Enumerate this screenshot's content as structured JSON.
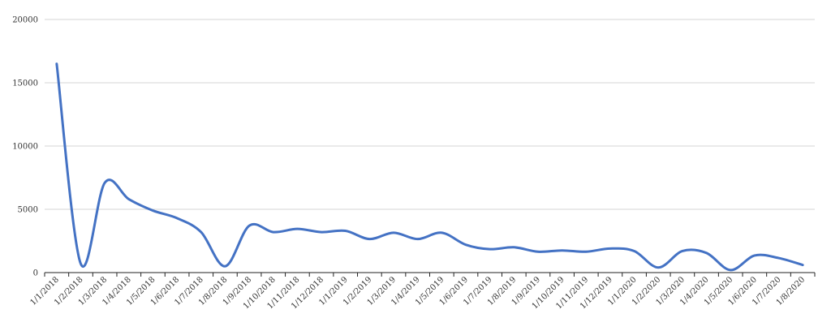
{
  "chart_data": {
    "type": "line",
    "title": "",
    "xlabel": "",
    "ylabel": "",
    "ylim": [
      0,
      20000
    ],
    "yticks": [
      0,
      5000,
      10000,
      15000,
      20000
    ],
    "grid": true,
    "legend": "none",
    "line_color": "#4472c4",
    "x": [
      "1/1/2018",
      "1/2/2018",
      "1/3/2018",
      "1/4/2018",
      "1/5/2018",
      "1/6/2018",
      "1/7/2018",
      "1/8/2018",
      "1/9/2018",
      "1/10/2018",
      "1/11/2018",
      "1/12/2018",
      "1/1/2019",
      "1/2/2019",
      "1/3/2019",
      "1/4/2019",
      "1/5/2019",
      "1/6/2019",
      "1/7/2019",
      "1/8/2019",
      "1/9/2019",
      "1/10/2019",
      "1/11/2019",
      "1/12/2019",
      "1/1/2020",
      "1/2/2020",
      "1/3/2020",
      "1/4/2020",
      "1/5/2020",
      "1/6/2020",
      "1/7/2020",
      "1/8/2020"
    ],
    "series": [
      {
        "values": [
          16500,
          700,
          7100,
          5800,
          4900,
          4300,
          3200,
          500,
          3700,
          3200,
          3450,
          3200,
          3300,
          2650,
          3150,
          2650,
          3150,
          2200,
          1850,
          2000,
          1650,
          1750,
          1650,
          1900,
          1700,
          400,
          1700,
          1550,
          200,
          1350,
          1150,
          600
        ]
      }
    ]
  }
}
